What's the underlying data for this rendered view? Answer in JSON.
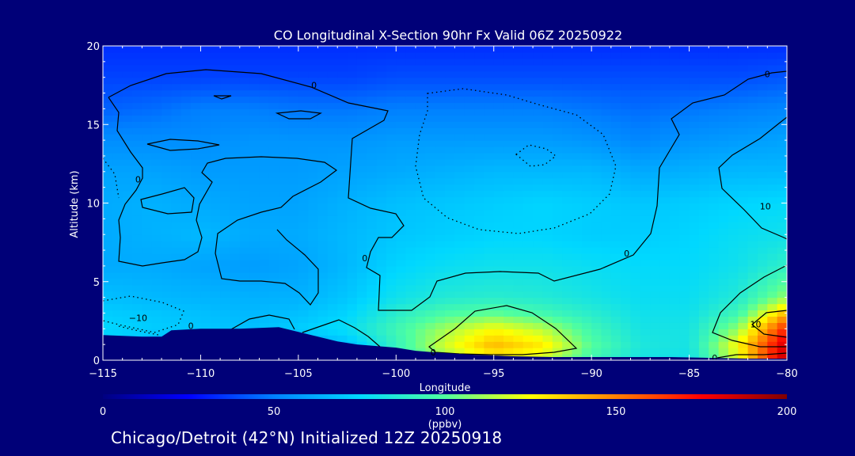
{
  "chart_data": {
    "type": "heatmap",
    "title": "CO Longitudinal X-Section 90hr  Fx Valid 06Z 20250922",
    "xlabel": "Longitude",
    "ylabel": "Altitude (km)",
    "xlim": [
      -115,
      -80
    ],
    "ylim": [
      0,
      20
    ],
    "x_ticks": [
      -115,
      -110,
      -105,
      -100,
      -95,
      -90,
      -85,
      -80
    ],
    "x_tick_labels": [
      "−115",
      "−110",
      "−105",
      "−100",
      "−95",
      "−90",
      "−85",
      "−80"
    ],
    "y_ticks": [
      0,
      5,
      10,
      15,
      20
    ],
    "y_tick_labels": [
      "0",
      "5",
      "10",
      "15",
      "20"
    ],
    "colorbar": {
      "min": 0,
      "max": 200,
      "ticks": [
        0,
        50,
        100,
        150,
        200
      ],
      "tick_labels": [
        "0",
        "50",
        "100",
        "150",
        "200"
      ],
      "unit_label": "(ppbv)",
      "colors": [
        "#000080",
        "#0000ff",
        "#0080ff",
        "#00d8ff",
        "#50ff9f",
        "#ffff00",
        "#ff8000",
        "#ff0000",
        "#800000"
      ]
    },
    "co_field_ppbv": {
      "x": [
        -115,
        -112.5,
        -110,
        -107.5,
        -105,
        -102.5,
        -100,
        -97.5,
        -95,
        -92.5,
        -90,
        -87.5,
        -85,
        -82.5,
        -80
      ],
      "y": [
        0,
        1,
        2,
        3,
        4,
        6,
        8,
        10,
        12,
        14,
        16,
        18,
        20
      ],
      "values": [
        [
          40,
          40,
          40,
          40,
          40,
          62,
          88,
          110,
          125,
          118,
          95,
          82,
          80,
          120,
          190
        ],
        [
          70,
          65,
          60,
          58,
          60,
          68,
          92,
          118,
          138,
          128,
          100,
          84,
          82,
          125,
          185
        ],
        [
          75,
          72,
          70,
          68,
          72,
          78,
          95,
          112,
          125,
          115,
          95,
          82,
          82,
          110,
          170
        ],
        [
          72,
          70,
          68,
          66,
          68,
          74,
          88,
          98,
          102,
          96,
          88,
          80,
          80,
          95,
          140
        ],
        [
          68,
          66,
          65,
          64,
          64,
          70,
          80,
          86,
          88,
          86,
          82,
          78,
          78,
          86,
          110
        ],
        [
          62,
          62,
          60,
          58,
          60,
          66,
          74,
          78,
          80,
          80,
          78,
          76,
          76,
          80,
          90
        ],
        [
          62,
          64,
          66,
          62,
          62,
          66,
          70,
          72,
          74,
          74,
          72,
          72,
          74,
          78,
          80
        ],
        [
          62,
          64,
          62,
          60,
          60,
          64,
          68,
          70,
          72,
          74,
          72,
          70,
          72,
          74,
          76
        ],
        [
          60,
          60,
          58,
          58,
          58,
          60,
          62,
          64,
          66,
          66,
          66,
          62,
          64,
          66,
          66
        ],
        [
          54,
          54,
          54,
          56,
          56,
          56,
          58,
          58,
          58,
          58,
          56,
          52,
          56,
          58,
          60
        ],
        [
          44,
          46,
          50,
          50,
          48,
          48,
          50,
          50,
          50,
          50,
          48,
          46,
          48,
          50,
          52
        ],
        [
          38,
          38,
          38,
          38,
          38,
          38,
          40,
          40,
          40,
          40,
          40,
          40,
          40,
          40,
          42
        ],
        [
          34,
          34,
          34,
          34,
          34,
          34,
          34,
          34,
          34,
          34,
          34,
          34,
          34,
          34,
          34
        ]
      ]
    },
    "terrain": {
      "longitude": [
        -115,
        -114,
        -113,
        -112,
        -111.5,
        -110,
        -108,
        -106,
        -105,
        -103,
        -102,
        -100,
        -99,
        -98,
        -96,
        -94,
        -92,
        -90,
        -88,
        -86,
        -84,
        -82,
        -80
      ],
      "altitude_km": [
        1.6,
        1.55,
        1.5,
        1.5,
        1.9,
        2.0,
        2.0,
        2.1,
        1.8,
        1.2,
        1.0,
        0.8,
        0.6,
        0.5,
        0.35,
        0.25,
        0.2,
        0.2,
        0.2,
        0.2,
        0.15,
        0.1,
        0.1
      ]
    },
    "contour_labels": [
      {
        "text": "0",
        "longitude": -104.2,
        "altitude_km": 17.5
      },
      {
        "text": "0",
        "longitude": -113.2,
        "altitude_km": 11.5
      },
      {
        "text": "0",
        "longitude": -101.6,
        "altitude_km": 6.5
      },
      {
        "text": "0",
        "longitude": -88.2,
        "altitude_km": 6.8
      },
      {
        "text": "0",
        "longitude": -98.1,
        "altitude_km": 0.5
      },
      {
        "text": "0",
        "longitude": -110.5,
        "altitude_km": 2.2
      },
      {
        "text": "0",
        "longitude": -83.7,
        "altitude_km": 0.15
      },
      {
        "text": "−10",
        "longitude": -113.2,
        "altitude_km": 2.7
      },
      {
        "text": "10",
        "longitude": -81.1,
        "altitude_km": 9.8
      },
      {
        "text": "10",
        "longitude": -81.6,
        "altitude_km": 2.3
      },
      {
        "text": "0",
        "longitude": -81.0,
        "altitude_km": 18.2
      }
    ]
  },
  "footer": {
    "caption": "Chicago/Detroit (42°N) Initialized 12Z 20250918"
  }
}
